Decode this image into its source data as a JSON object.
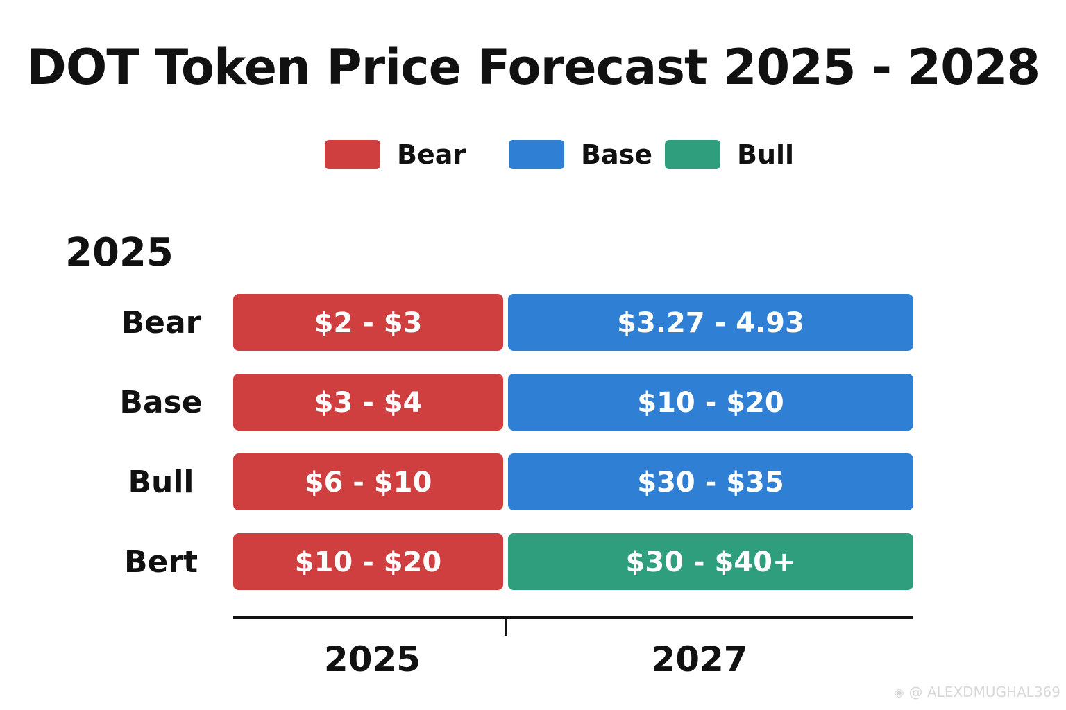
{
  "title": "DOT Token Price Forecast 2025 - 2028",
  "watermark": "◈ @ ALEXDMUGHAL369",
  "colors": {
    "bear": "#cf3f3f",
    "base": "#2f7fd4",
    "bull": "#2e9e7c"
  },
  "legend": [
    {
      "label": "Bear",
      "color": "#cf3f3f"
    },
    {
      "label": "Base",
      "color": "#2f7fd4"
    },
    {
      "label": "Bull",
      "color": "#2e9e7c"
    }
  ],
  "chart_data": {
    "type": "table",
    "title": "DOT Token Price Forecast 2025 - 2028",
    "section_label": "2025",
    "columns": [
      "2025",
      "2027"
    ],
    "legend_placement": "top-center",
    "grid": false,
    "rows": [
      {
        "label": "Bear",
        "cells": [
          {
            "text": "$2 - $3",
            "color": "#cf3f3f"
          },
          {
            "text": "$3.27 - 4.93",
            "color": "#2f7fd4"
          }
        ]
      },
      {
        "label": "Base",
        "cells": [
          {
            "text": "$3 - $4",
            "color": "#cf3f3f"
          },
          {
            "text": "$10 - $20",
            "color": "#2f7fd4"
          }
        ]
      },
      {
        "label": "Bull",
        "cells": [
          {
            "text": "$6 - $10",
            "color": "#cf3f3f"
          },
          {
            "text": "$30 - $35",
            "color": "#2f7fd4"
          }
        ]
      },
      {
        "label": "Bert",
        "cells": [
          {
            "text": "$10 - $20",
            "color": "#cf3f3f"
          },
          {
            "text": "$30 - $40+",
            "color": "#2e9e7c"
          }
        ]
      }
    ]
  }
}
